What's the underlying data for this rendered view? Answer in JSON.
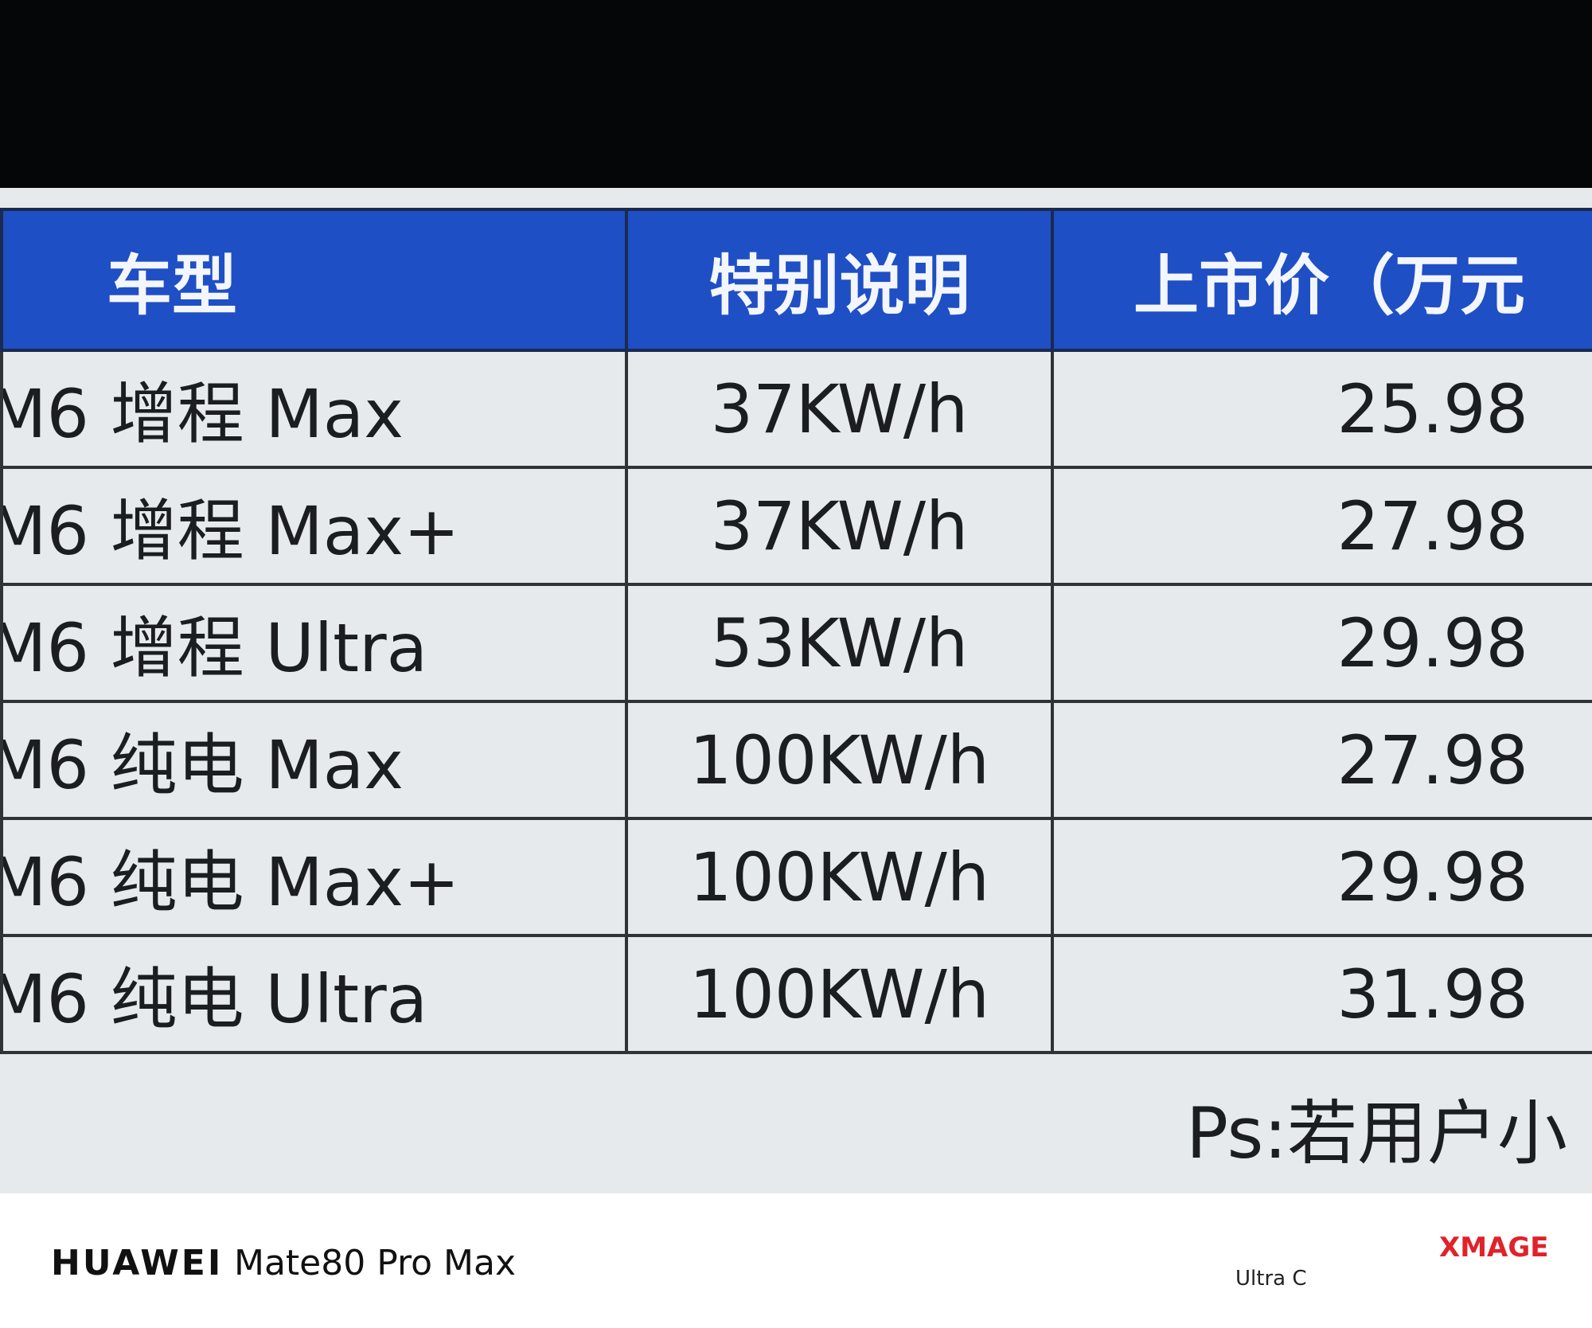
{
  "table": {
    "header": [
      "车型",
      "特别说明",
      "上市价（万元"
    ],
    "rows": [
      [
        "M6 增程 Max",
        "37KW/h",
        "25.98"
      ],
      [
        "M6 增程 Max+",
        "37KW/h",
        "27.98"
      ],
      [
        "M6 增程 Ultra",
        "53KW/h",
        "29.98"
      ],
      [
        "M6 纯电 Max",
        "100KW/h",
        "27.98"
      ],
      [
        "M6 纯电 Max+",
        "100KW/h",
        "29.98"
      ],
      [
        "M6 纯电 Ultra",
        "100KW/h",
        "31.98"
      ]
    ],
    "note": "Ps:若用户小"
  },
  "footer": {
    "brand": "HUAWEI",
    "model": "Mate80 Pro Max",
    "logo": "XMAGE",
    "sub": "Ultra C"
  }
}
